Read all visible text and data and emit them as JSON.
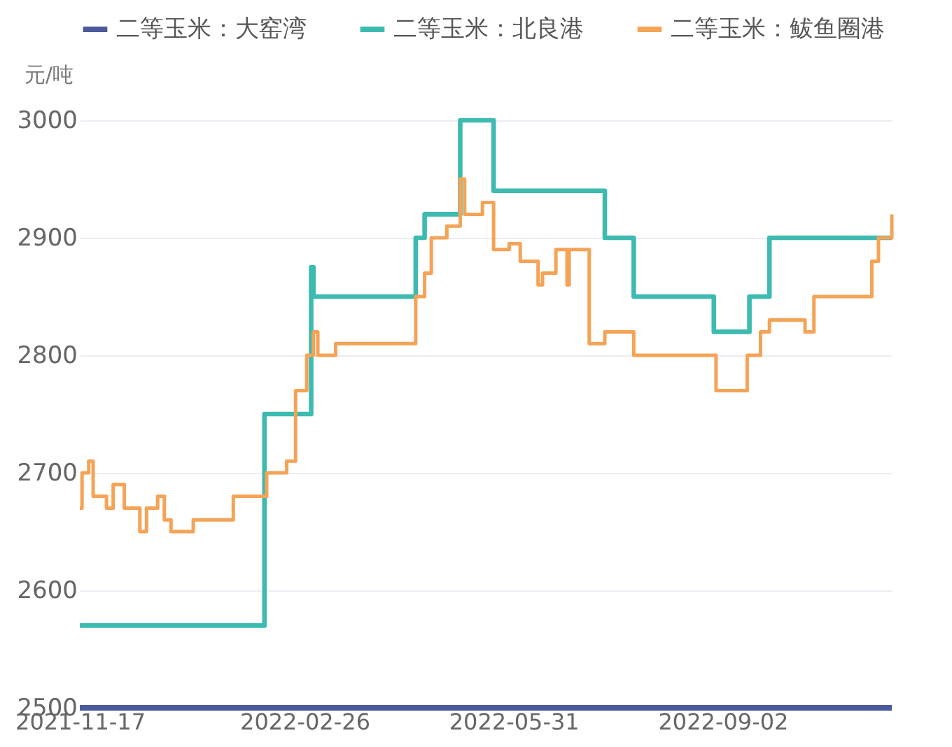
{
  "chart_data": {
    "type": "step",
    "ylabel": "元/吨",
    "ylim": [
      2500,
      3000
    ],
    "yticks": [
      2500,
      2600,
      2700,
      2800,
      2900,
      3000
    ],
    "xlim": [
      "2021-11-17",
      "2022-11-17"
    ],
    "xticks": [
      "2021-11-17",
      "2022-02-26",
      "2022-05-31",
      "2022-09-02"
    ],
    "grid": "y",
    "legend": "top",
    "marker": "none",
    "line_style": "solid",
    "series": [
      {
        "name": "二等玉米：大窑湾",
        "color": "#4b5a9a",
        "x": [
          "2021-11-17",
          "2022-11-17"
        ],
        "values": [
          2500,
          2500
        ]
      },
      {
        "name": "二等玉米：北良港",
        "color": "#3dbbb0",
        "x": [
          "2021-11-17",
          "2022-02-08",
          "2022-03-01",
          "2022-03-02",
          "2022-04-17",
          "2022-04-21",
          "2022-05-07",
          "2022-05-22",
          "2022-07-11",
          "2022-07-24",
          "2022-08-29",
          "2022-09-14",
          "2022-09-23",
          "2022-11-17"
        ],
        "values": [
          2570,
          2750,
          2875,
          2850,
          2900,
          2920,
          3000,
          2940,
          2900,
          2850,
          2820,
          2850,
          2900,
          2900
        ]
      },
      {
        "name": "二等玉米：鲅鱼圈港",
        "color": "#f5a356",
        "x": [
          "2021-11-17",
          "2021-11-18",
          "2021-11-21",
          "2021-11-23",
          "2021-11-29",
          "2021-12-02",
          "2021-12-07",
          "2021-12-14",
          "2021-12-17",
          "2021-12-22",
          "2021-12-25",
          "2021-12-28",
          "2022-01-07",
          "2022-01-25",
          "2022-02-09",
          "2022-02-18",
          "2022-02-22",
          "2022-02-27",
          "2022-03-02",
          "2022-03-04",
          "2022-03-12",
          "2022-04-17",
          "2022-04-21",
          "2022-04-24",
          "2022-05-01",
          "2022-05-07",
          "2022-05-09",
          "2022-05-17",
          "2022-05-22",
          "2022-05-29",
          "2022-06-03",
          "2022-06-11",
          "2022-06-13",
          "2022-06-19",
          "2022-06-24",
          "2022-06-25",
          "2022-07-04",
          "2022-07-11",
          "2022-07-24",
          "2022-08-30",
          "2022-09-13",
          "2022-09-19",
          "2022-09-23",
          "2022-10-09",
          "2022-10-13",
          "2022-11-08",
          "2022-11-11",
          "2022-11-17"
        ],
        "values": [
          2670,
          2700,
          2710,
          2680,
          2670,
          2690,
          2670,
          2650,
          2670,
          2680,
          2660,
          2650,
          2660,
          2680,
          2700,
          2710,
          2770,
          2800,
          2820,
          2800,
          2810,
          2850,
          2870,
          2900,
          2910,
          2950,
          2920,
          2930,
          2890,
          2895,
          2880,
          2860,
          2870,
          2890,
          2860,
          2890,
          2810,
          2820,
          2800,
          2770,
          2800,
          2820,
          2830,
          2820,
          2850,
          2880,
          2900,
          2920
        ]
      }
    ]
  }
}
